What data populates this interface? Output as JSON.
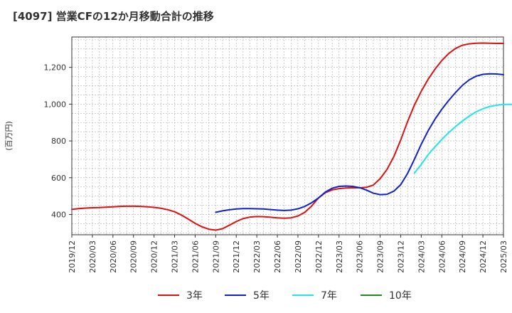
{
  "chart_data": {
    "type": "line",
    "title": "[4097]  営業CFの12か月移動合計の推移",
    "ylabel": "(百万円)",
    "xlabel": "",
    "ylim": [
      290,
      1365
    ],
    "yticks": [
      400,
      600,
      800,
      1000,
      1200
    ],
    "ytick_labels": [
      "400",
      "600",
      "800",
      "1,000",
      "1,200"
    ],
    "xticks": [
      "2019/12",
      "2020/03",
      "2020/06",
      "2020/09",
      "2020/12",
      "2021/03",
      "2021/06",
      "2021/09",
      "2021/12",
      "2022/03",
      "2022/06",
      "2022/09",
      "2022/12",
      "2023/03",
      "2023/06",
      "2023/09",
      "2023/12",
      "2024/03",
      "2024/06",
      "2024/09",
      "2024/12",
      "2025/03"
    ],
    "grid": true,
    "legend_position": "bottom",
    "colors": {
      "s3": "#dd1111",
      "s5": "#1122cc",
      "s7": "#22e5e5",
      "s10": "#228822",
      "grid": "#aaaaaa",
      "axis": "#333333"
    },
    "series": [
      {
        "name": "3年",
        "color": "#dd1111",
        "points": [
          [
            "2019/12",
            428
          ],
          [
            "2020/01",
            432
          ],
          [
            "2020/02",
            435
          ],
          [
            "2020/03",
            437
          ],
          [
            "2020/04",
            438
          ],
          [
            "2020/05",
            440
          ],
          [
            "2020/06",
            442
          ],
          [
            "2020/07",
            444
          ],
          [
            "2020/08",
            445
          ],
          [
            "2020/09",
            445
          ],
          [
            "2020/10",
            444
          ],
          [
            "2020/11",
            442
          ],
          [
            "2020/12",
            439
          ],
          [
            "2021/01",
            434
          ],
          [
            "2021/02",
            426
          ],
          [
            "2021/03",
            415
          ],
          [
            "2021/04",
            397
          ],
          [
            "2021/05",
            375
          ],
          [
            "2021/06",
            352
          ],
          [
            "2021/07",
            333
          ],
          [
            "2021/08",
            320
          ],
          [
            "2021/09",
            315
          ],
          [
            "2021/10",
            323
          ],
          [
            "2021/11",
            342
          ],
          [
            "2021/12",
            362
          ],
          [
            "2022/01",
            378
          ],
          [
            "2022/02",
            386
          ],
          [
            "2022/03",
            389
          ],
          [
            "2022/04",
            388
          ],
          [
            "2022/05",
            385
          ],
          [
            "2022/06",
            382
          ],
          [
            "2022/07",
            380
          ],
          [
            "2022/08",
            382
          ],
          [
            "2022/09",
            392
          ],
          [
            "2022/10",
            412
          ],
          [
            "2022/11",
            446
          ],
          [
            "2022/12",
            490
          ],
          [
            "2023/01",
            519
          ],
          [
            "2023/02",
            534
          ],
          [
            "2023/03",
            541
          ],
          [
            "2023/04",
            544
          ],
          [
            "2023/05",
            545
          ],
          [
            "2023/06",
            545
          ],
          [
            "2023/07",
            548
          ],
          [
            "2023/08",
            560
          ],
          [
            "2023/09",
            595
          ],
          [
            "2023/10",
            645
          ],
          [
            "2023/11",
            715
          ],
          [
            "2023/12",
            805
          ],
          [
            "2024/01",
            905
          ],
          [
            "2024/02",
            995
          ],
          [
            "2024/03",
            1070
          ],
          [
            "2024/04",
            1135
          ],
          [
            "2024/05",
            1190
          ],
          [
            "2024/06",
            1237
          ],
          [
            "2024/07",
            1275
          ],
          [
            "2024/08",
            1303
          ],
          [
            "2024/09",
            1320
          ],
          [
            "2024/10",
            1328
          ],
          [
            "2024/11",
            1331
          ],
          [
            "2024/12",
            1332
          ],
          [
            "2025/01",
            1331
          ],
          [
            "2025/02",
            1330
          ],
          [
            "2025/03",
            1330
          ]
        ]
      },
      {
        "name": "5年",
        "color": "#1122cc",
        "points": [
          [
            "2021/09",
            412
          ],
          [
            "2021/10",
            420
          ],
          [
            "2021/11",
            426
          ],
          [
            "2021/12",
            430
          ],
          [
            "2022/01",
            432
          ],
          [
            "2022/02",
            432
          ],
          [
            "2022/03",
            431
          ],
          [
            "2022/04",
            430
          ],
          [
            "2022/05",
            427
          ],
          [
            "2022/06",
            424
          ],
          [
            "2022/07",
            422
          ],
          [
            "2022/08",
            424
          ],
          [
            "2022/09",
            431
          ],
          [
            "2022/10",
            444
          ],
          [
            "2022/11",
            464
          ],
          [
            "2022/12",
            490
          ],
          [
            "2023/01",
            522
          ],
          [
            "2023/02",
            543
          ],
          [
            "2023/03",
            553
          ],
          [
            "2023/04",
            555
          ],
          [
            "2023/05",
            553
          ],
          [
            "2023/06",
            546
          ],
          [
            "2023/07",
            533
          ],
          [
            "2023/08",
            516
          ],
          [
            "2023/09",
            508
          ],
          [
            "2023/10",
            510
          ],
          [
            "2023/11",
            527
          ],
          [
            "2023/12",
            562
          ],
          [
            "2024/01",
            623
          ],
          [
            "2024/02",
            700
          ],
          [
            "2024/03",
            782
          ],
          [
            "2024/04",
            855
          ],
          [
            "2024/05",
            918
          ],
          [
            "2024/06",
            972
          ],
          [
            "2024/07",
            1020
          ],
          [
            "2024/08",
            1063
          ],
          [
            "2024/09",
            1102
          ],
          [
            "2024/10",
            1132
          ],
          [
            "2024/11",
            1152
          ],
          [
            "2024/12",
            1162
          ],
          [
            "2025/01",
            1165
          ],
          [
            "2025/02",
            1164
          ],
          [
            "2025/03",
            1160
          ]
        ]
      },
      {
        "name": "7年",
        "color": "#22e5e5",
        "points": [
          [
            "2024/02",
            625
          ],
          [
            "2024/03",
            672
          ],
          [
            "2024/04",
            725
          ],
          [
            "2024/05",
            768
          ],
          [
            "2024/06",
            808
          ],
          [
            "2024/07",
            845
          ],
          [
            "2024/08",
            878
          ],
          [
            "2024/09",
            908
          ],
          [
            "2024/10",
            935
          ],
          [
            "2024/11",
            958
          ],
          [
            "2024/12",
            975
          ],
          [
            "2025/01",
            987
          ],
          [
            "2025/02",
            994
          ],
          [
            "2025/03",
            998
          ],
          [
            "2025/04",
            999
          ],
          [
            "2025/05",
            998
          ]
        ]
      },
      {
        "name": "10年",
        "color": "#228822",
        "points": []
      }
    ]
  }
}
